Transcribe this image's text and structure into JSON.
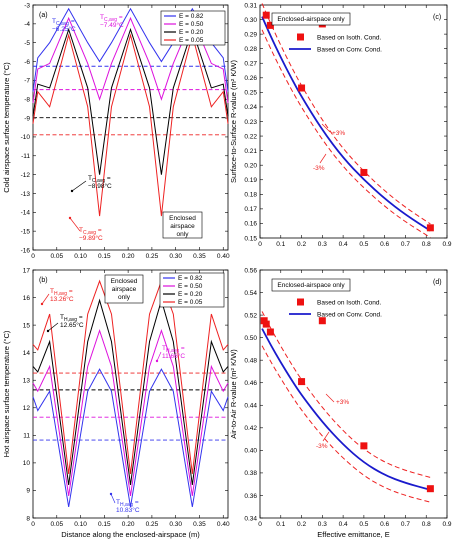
{
  "chart_data": [
    {
      "id": "a",
      "type": "line",
      "panel_label": "(a)",
      "xlabel": "",
      "ylabel": "Cold airspace surface temperature (°C)",
      "xlim": [
        0,
        0.41
      ],
      "ylim": [
        -16,
        -3
      ],
      "xticks": [
        "0",
        "0.05",
        "0.10",
        "0.15",
        "0.20",
        "0.25",
        "0.30",
        "0.35",
        "0.40"
      ],
      "xtick_values": [
        0,
        0.05,
        0.1,
        0.15,
        0.2,
        0.25,
        0.3,
        0.35,
        0.4
      ],
      "yticks": [
        "-16",
        "-15",
        "-14",
        "-13",
        "-12",
        "-11",
        "-10",
        "-9",
        "-8",
        "-7",
        "-6",
        "-5",
        "-4",
        "-3"
      ],
      "ytick_values": [
        -16,
        -15,
        -14,
        -13,
        -12,
        -11,
        -10,
        -9,
        -8,
        -7,
        -6,
        -5,
        -4,
        -3
      ],
      "legend_position": "top-right",
      "series": [
        {
          "name": "E = 0.82",
          "color": "#3333ee",
          "x": [
            0,
            0.01,
            0.035,
            0.075,
            0.115,
            0.14,
            0.165,
            0.205,
            0.245,
            0.27,
            0.295,
            0.335,
            0.375,
            0.4,
            0.41
          ],
          "values": [
            -7.6,
            -5.8,
            -5.0,
            -3.2,
            -5.0,
            -6.0,
            -5.0,
            -3.2,
            -5.0,
            -6.0,
            -5.0,
            -3.2,
            -5.0,
            -5.8,
            -7.6
          ],
          "avg": -6.25
        },
        {
          "name": "E = 0.50",
          "color": "#dd11dd",
          "x": [
            0,
            0.01,
            0.035,
            0.075,
            0.115,
            0.14,
            0.165,
            0.205,
            0.245,
            0.27,
            0.295,
            0.335,
            0.375,
            0.4,
            0.41
          ],
          "values": [
            -8.2,
            -6.4,
            -6.1,
            -3.7,
            -6.1,
            -8.0,
            -6.1,
            -3.7,
            -6.1,
            -8.0,
            -6.1,
            -3.7,
            -6.1,
            -6.4,
            -8.2
          ],
          "avg": -7.49
        },
        {
          "name": "E = 0.20",
          "color": "#000000",
          "x": [
            0,
            0.01,
            0.035,
            0.075,
            0.115,
            0.14,
            0.165,
            0.205,
            0.245,
            0.27,
            0.295,
            0.335,
            0.375,
            0.4,
            0.41
          ],
          "values": [
            -8.9,
            -7.2,
            -7.4,
            -4.3,
            -7.4,
            -12.0,
            -7.4,
            -4.3,
            -7.4,
            -12.0,
            -7.4,
            -4.3,
            -7.4,
            -7.2,
            -8.9
          ],
          "avg": -8.98
        },
        {
          "name": "E = 0.05",
          "color": "#ee2222",
          "x": [
            0,
            0.01,
            0.035,
            0.075,
            0.115,
            0.14,
            0.165,
            0.205,
            0.245,
            0.27,
            0.295,
            0.335,
            0.375,
            0.4,
            0.41
          ],
          "values": [
            -9.3,
            -7.6,
            -8.4,
            -4.6,
            -8.4,
            -14.2,
            -8.4,
            -4.6,
            -8.4,
            -14.2,
            -8.4,
            -4.6,
            -8.4,
            -7.6,
            -9.3
          ],
          "avg": -9.89
        }
      ],
      "annotations": [
        {
          "line1": "T",
          "sub": "C,avg",
          "line1_tail": " =",
          "line2": "−6.25°C",
          "color": "#3333ee"
        },
        {
          "line1": "T",
          "sub": "C,avg",
          "line1_tail": " =",
          "line2": "−7.49°C",
          "color": "#dd11dd"
        },
        {
          "line1": "T",
          "sub": "C,avg",
          "line1_tail": " =",
          "line2": "−8.98°C",
          "color": "#000000"
        },
        {
          "line1": "T",
          "sub": "C,avg",
          "line1_tail": " =",
          "line2": "−9.89°C",
          "color": "#ee2222"
        }
      ],
      "boxed_note": [
        "Enclosed",
        "airspace",
        "only"
      ]
    },
    {
      "id": "b",
      "type": "line",
      "panel_label": "(b)",
      "xlabel": "Distance along the enclosed-airspace (m)",
      "ylabel": "Hot airspace surface temperature (°C)",
      "xlim": [
        0,
        0.41
      ],
      "ylim": [
        8,
        17
      ],
      "xticks": [
        "0",
        "0.05",
        "0.10",
        "0.15",
        "0.20",
        "0.25",
        "0.30",
        "0.35",
        "0.40"
      ],
      "xtick_values": [
        0,
        0.05,
        0.1,
        0.15,
        0.2,
        0.25,
        0.3,
        0.35,
        0.4
      ],
      "yticks": [
        "8",
        "9",
        "10",
        "11",
        "12",
        "13",
        "14",
        "15",
        "16",
        "17"
      ],
      "ytick_values": [
        8,
        9,
        10,
        11,
        12,
        13,
        14,
        15,
        16,
        17
      ],
      "legend_position": "top-right",
      "series": [
        {
          "name": "E = 0.82",
          "color": "#3333ee",
          "x": [
            0,
            0.01,
            0.035,
            0.075,
            0.115,
            0.14,
            0.165,
            0.205,
            0.245,
            0.27,
            0.295,
            0.335,
            0.375,
            0.4,
            0.41
          ],
          "values": [
            12.4,
            11.9,
            12.6,
            8.4,
            12.6,
            13.4,
            12.6,
            8.4,
            12.6,
            13.4,
            12.6,
            8.4,
            12.6,
            11.9,
            12.4
          ],
          "avg": 10.83
        },
        {
          "name": "E = 0.50",
          "color": "#dd11dd",
          "x": [
            0,
            0.01,
            0.035,
            0.075,
            0.115,
            0.14,
            0.165,
            0.205,
            0.245,
            0.27,
            0.295,
            0.335,
            0.375,
            0.4,
            0.41
          ],
          "values": [
            12.9,
            12.6,
            13.5,
            8.8,
            13.5,
            14.8,
            13.5,
            8.8,
            13.5,
            14.8,
            13.5,
            8.8,
            13.5,
            12.6,
            12.9
          ],
          "avg": 11.66
        },
        {
          "name": "E = 0.20",
          "color": "#000000",
          "x": [
            0,
            0.01,
            0.035,
            0.075,
            0.115,
            0.14,
            0.165,
            0.205,
            0.245,
            0.27,
            0.295,
            0.335,
            0.375,
            0.4,
            0.41
          ],
          "values": [
            13.5,
            13.3,
            14.4,
            9.2,
            14.4,
            15.9,
            14.4,
            9.2,
            14.4,
            15.9,
            14.4,
            9.2,
            14.4,
            13.3,
            13.5
          ],
          "avg": 12.65
        },
        {
          "name": "E = 0.05",
          "color": "#ee2222",
          "x": [
            0,
            0.01,
            0.035,
            0.075,
            0.115,
            0.14,
            0.165,
            0.205,
            0.245,
            0.27,
            0.295,
            0.335,
            0.375,
            0.4,
            0.41
          ],
          "values": [
            14.3,
            14.1,
            15.4,
            9.6,
            15.4,
            16.6,
            15.4,
            9.6,
            15.4,
            16.6,
            15.4,
            9.6,
            15.4,
            14.1,
            14.3
          ],
          "avg": 13.26
        }
      ],
      "annotations": [
        {
          "line1": "T",
          "sub": "H,avg",
          "line1_tail": " =",
          "line2": "13.26°C",
          "color": "#ee2222"
        },
        {
          "line1": "T",
          "sub": "H,avg",
          "line1_tail": " =",
          "line2": "12.65°C",
          "color": "#000000"
        },
        {
          "line1": "T",
          "sub": "H,avg",
          "line1_tail": " =",
          "line2": "11.66°C",
          "color": "#dd11dd"
        },
        {
          "line1": "T",
          "sub": "H,avg",
          "line1_tail": " =",
          "line2": "10.83°C",
          "color": "#3333ee"
        }
      ],
      "boxed_note": [
        "Enclosed",
        "airspace",
        "only"
      ]
    },
    {
      "id": "c",
      "type": "scatter",
      "panel_label": "(c)",
      "xlabel": "",
      "ylabel": "Surface-to-Surface R-value (m² K/W)",
      "xlim": [
        0,
        0.9
      ],
      "ylim": [
        0.15,
        0.31
      ],
      "xticks": [
        "0",
        "0.1",
        "0.2",
        "0.3",
        "0.4",
        "0.5",
        "0.6",
        "0.7",
        "0.8",
        "0.9"
      ],
      "xtick_values": [
        0,
        0.1,
        0.2,
        0.3,
        0.4,
        0.5,
        0.6,
        0.7,
        0.8,
        0.9
      ],
      "yticks": [
        "0.15",
        "0.16",
        "0.17",
        "0.18",
        "0.19",
        "0.20",
        "0.21",
        "0.22",
        "0.23",
        "0.24",
        "0.25",
        "0.26",
        "0.27",
        "0.28",
        "0.29",
        "0.30",
        "0.31"
      ],
      "ytick_values": [
        0.15,
        0.16,
        0.17,
        0.18,
        0.19,
        0.2,
        0.21,
        0.22,
        0.23,
        0.24,
        0.25,
        0.26,
        0.27,
        0.28,
        0.29,
        0.3,
        0.31
      ],
      "title_box": "Enclosed-airspace only",
      "legend": [
        "Based on Isoth. Cond.",
        "Based on Conv. Cond."
      ],
      "points_name": "Based on Isoth. Cond.",
      "points": {
        "x": [
          0.03,
          0.05,
          0.2,
          0.3,
          0.5,
          0.82
        ],
        "y": [
          0.303,
          0.296,
          0.253,
          0.297,
          0.195,
          0.157
        ]
      },
      "curve_name": "Based on Conv. Cond.",
      "curve": {
        "x": [
          0.01,
          0.05,
          0.1,
          0.15,
          0.2,
          0.3,
          0.4,
          0.5,
          0.6,
          0.7,
          0.82
        ],
        "y": [
          0.302,
          0.289,
          0.274,
          0.26,
          0.247,
          0.224,
          0.205,
          0.19,
          0.177,
          0.166,
          0.155
        ]
      },
      "band_labels": [
        "+3%",
        "-3%"
      ],
      "band_pct": 0.03
    },
    {
      "id": "d",
      "type": "scatter",
      "panel_label": "(d)",
      "xlabel": "Effective emittance, E",
      "ylabel": "Air-to-Air R-value (m² K/W)",
      "xlim": [
        0,
        0.9
      ],
      "ylim": [
        0.34,
        0.56
      ],
      "xticks": [
        "0",
        "0.1",
        "0.2",
        "0.3",
        "0.4",
        "0.5",
        "0.6",
        "0.7",
        "0.8",
        "0.9"
      ],
      "xtick_values": [
        0,
        0.1,
        0.2,
        0.3,
        0.4,
        0.5,
        0.6,
        0.7,
        0.8,
        0.9
      ],
      "yticks": [
        "0.34",
        "0.36",
        "0.38",
        "0.40",
        "0.42",
        "0.44",
        "0.46",
        "0.48",
        "0.50",
        "0.52",
        "0.54",
        "0.56"
      ],
      "ytick_values": [
        0.34,
        0.36,
        0.38,
        0.4,
        0.42,
        0.44,
        0.46,
        0.48,
        0.5,
        0.52,
        0.54,
        0.56
      ],
      "title_box": "Enclosed-airspace only",
      "legend": [
        "Based on Isoth. Cond.",
        "Based on Conv. Cond."
      ],
      "points_name": "Based on Isoth. Cond.",
      "points": {
        "x": [
          0.02,
          0.03,
          0.05,
          0.2,
          0.3,
          0.5,
          0.82
        ],
        "y": [
          0.515,
          0.512,
          0.505,
          0.461,
          0.515,
          0.404,
          0.366
        ]
      },
      "curve_name": "Based on Conv. Cond.",
      "curve": {
        "x": [
          0.01,
          0.05,
          0.1,
          0.15,
          0.2,
          0.3,
          0.4,
          0.5,
          0.6,
          0.7,
          0.82
        ],
        "y": [
          0.508,
          0.494,
          0.478,
          0.463,
          0.449,
          0.425,
          0.405,
          0.389,
          0.378,
          0.371,
          0.365
        ]
      },
      "band_labels": [
        "+3%",
        "-3%"
      ],
      "band_pct": 0.03
    }
  ]
}
